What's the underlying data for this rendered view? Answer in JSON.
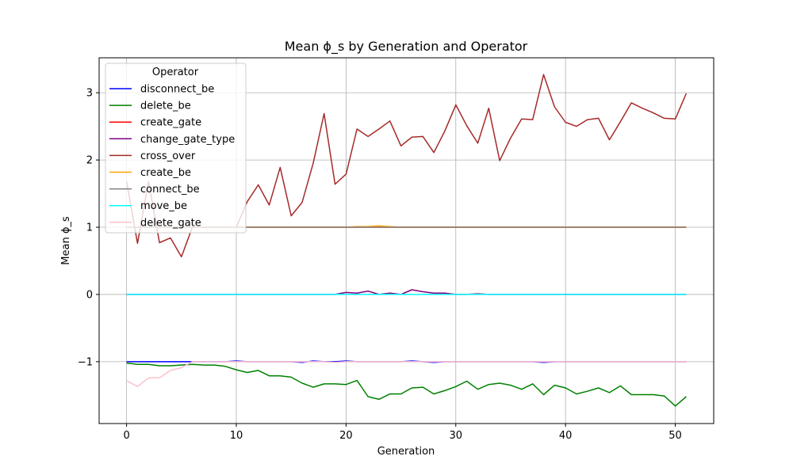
{
  "chart_data": {
    "type": "line",
    "title": "Mean ϕ_s by Generation and Operator",
    "xlabel": "Generation",
    "ylabel": "Mean ϕ_s",
    "xlim": [
      -2.5,
      53.5
    ],
    "ylim": [
      -1.92,
      3.52
    ],
    "xticks": [
      0,
      10,
      20,
      30,
      40,
      50
    ],
    "yticks": [
      -1,
      0,
      1,
      2,
      3
    ],
    "ytick_labels": [
      "−1",
      "0",
      "1",
      "2",
      "3"
    ],
    "grid": true,
    "legend": {
      "title": "Operator",
      "placement": "upper-left"
    },
    "x": [
      0,
      1,
      2,
      3,
      4,
      5,
      6,
      7,
      8,
      9,
      10,
      11,
      12,
      13,
      14,
      15,
      16,
      17,
      18,
      19,
      20,
      21,
      22,
      23,
      24,
      25,
      26,
      27,
      28,
      29,
      30,
      31,
      32,
      33,
      34,
      35,
      36,
      37,
      38,
      39,
      40,
      41,
      42,
      43,
      44,
      45,
      46,
      47,
      48,
      49,
      50,
      51
    ],
    "series": [
      {
        "name": "disconnect_be",
        "color": "#0000ff",
        "values": [
          -1.0,
          -1.0,
          -1.0,
          -1.0,
          -1.0,
          -1.0,
          -1.0,
          -1.0,
          -1.0,
          -1.0,
          -0.99,
          -1.0,
          -1.0,
          -1.0,
          -1.0,
          -1.0,
          -1.01,
          -0.99,
          -1.0,
          -1.0,
          -0.99,
          -1.0,
          -1.0,
          -1.0,
          -1.0,
          -1.0,
          -0.99,
          -1.0,
          -1.01,
          -1.0,
          -1.0,
          -1.0,
          -1.0,
          -1.0,
          -1.0,
          -1.0,
          -1.0,
          -1.0,
          -1.01,
          -1.0,
          -1.0,
          -1.0,
          -1.0,
          -1.0,
          -1.0,
          -1.0,
          -1.0,
          -1.0,
          -1.0,
          -1.0,
          -1.0,
          -1.0
        ]
      },
      {
        "name": "delete_be",
        "color": "#008000",
        "values": [
          -1.02,
          -1.04,
          -1.04,
          -1.06,
          -1.06,
          -1.05,
          -1.04,
          -1.05,
          -1.05,
          -1.07,
          -1.12,
          -1.16,
          -1.13,
          -1.21,
          -1.21,
          -1.23,
          -1.32,
          -1.38,
          -1.33,
          -1.33,
          -1.34,
          -1.28,
          -1.52,
          -1.56,
          -1.48,
          -1.48,
          -1.39,
          -1.38,
          -1.48,
          -1.43,
          -1.37,
          -1.29,
          -1.41,
          -1.34,
          -1.32,
          -1.35,
          -1.41,
          -1.33,
          -1.49,
          -1.35,
          -1.39,
          -1.48,
          -1.44,
          -1.39,
          -1.46,
          -1.36,
          -1.49,
          -1.49,
          -1.49,
          -1.51,
          -1.66,
          -1.52
        ]
      },
      {
        "name": "create_gate",
        "color": "#ff0000",
        "values": [
          1.0,
          1.0,
          1.0,
          1.0,
          1.0,
          1.0,
          1.0,
          1.0,
          1.0,
          1.0,
          1.0,
          1.0,
          1.0,
          1.0,
          1.0,
          1.0,
          1.0,
          1.0,
          1.0,
          1.0,
          1.0,
          1.0,
          1.0,
          1.0,
          1.0,
          1.0,
          1.0,
          1.0,
          1.0,
          1.0,
          1.0,
          1.0,
          1.0,
          1.0,
          1.0,
          1.0,
          1.0,
          1.0,
          1.0,
          1.0,
          1.0,
          1.0,
          1.0,
          1.0,
          1.0,
          1.0,
          1.0,
          1.0,
          1.0,
          1.0,
          1.0,
          1.0
        ]
      },
      {
        "name": "change_gate_type",
        "color": "#800080",
        "values": [
          0.0,
          0.0,
          0.0,
          0.0,
          0.0,
          0.0,
          0.0,
          0.0,
          0.0,
          0.0,
          0.0,
          0.0,
          0.0,
          0.0,
          0.0,
          0.0,
          0.0,
          0.0,
          0.0,
          0.0,
          0.03,
          0.02,
          0.05,
          0.0,
          0.02,
          0.0,
          0.07,
          0.04,
          0.02,
          0.02,
          0.0,
          0.0,
          0.01,
          0.0,
          0.0,
          0.0,
          0.0,
          0.0,
          0.0,
          0.0,
          0.0,
          0.0,
          0.0,
          0.0,
          0.0,
          0.0,
          0.0,
          0.0,
          0.0,
          0.0,
          0.0,
          0.0
        ]
      },
      {
        "name": "cross_over",
        "color": "#a52a2a",
        "values": [
          1.68,
          0.76,
          1.68,
          0.77,
          0.84,
          0.56,
          1.0,
          1.0,
          1.0,
          1.0,
          1.0,
          1.38,
          1.63,
          1.33,
          1.89,
          1.17,
          1.37,
          1.95,
          2.69,
          1.64,
          1.79,
          2.46,
          2.35,
          2.46,
          2.58,
          2.21,
          2.34,
          2.35,
          2.11,
          2.43,
          2.82,
          2.51,
          2.25,
          2.77,
          1.99,
          2.33,
          2.61,
          2.6,
          3.27,
          2.79,
          2.56,
          2.5,
          2.6,
          2.62,
          2.3,
          2.57,
          2.85,
          2.77,
          2.7,
          2.62,
          2.61,
          2.99
        ]
      },
      {
        "name": "create_be",
        "color": "#ffa500",
        "values": [
          1.0,
          1.0,
          1.0,
          1.0,
          1.0,
          1.0,
          1.0,
          1.0,
          1.0,
          1.0,
          1.0,
          1.0,
          1.0,
          1.0,
          1.0,
          1.0,
          1.0,
          1.0,
          1.0,
          1.0,
          1.0,
          1.01,
          1.01,
          1.02,
          1.01,
          1.0,
          1.0,
          1.0,
          1.0,
          1.0,
          1.0,
          1.0,
          1.0,
          1.0,
          1.0,
          1.0,
          1.0,
          1.0,
          1.0,
          1.0,
          1.0,
          1.0,
          1.0,
          1.0,
          1.0,
          1.0,
          1.0,
          1.0,
          1.0,
          1.0,
          1.0,
          1.0
        ]
      },
      {
        "name": "connect_be",
        "color": "#808080",
        "values": [
          1.0,
          1.0,
          1.0,
          1.0,
          1.0,
          1.0,
          1.0,
          1.0,
          1.0,
          1.0,
          1.0,
          1.0,
          1.0,
          1.0,
          1.0,
          1.0,
          1.0,
          1.0,
          1.0,
          1.0,
          1.0,
          1.0,
          1.0,
          1.0,
          1.0,
          1.0,
          1.0,
          1.0,
          1.0,
          1.0,
          1.0,
          1.0,
          1.0,
          1.0,
          1.0,
          1.0,
          1.0,
          1.0,
          1.0,
          1.0,
          1.0,
          1.0,
          1.0,
          1.0,
          1.0,
          1.0,
          1.0,
          1.0,
          1.0,
          1.0,
          1.0,
          1.0
        ]
      },
      {
        "name": "move_be",
        "color": "#00ffff",
        "values": [
          0.0,
          0.0,
          0.0,
          0.0,
          0.0,
          0.0,
          0.0,
          0.0,
          0.0,
          0.0,
          0.0,
          0.0,
          0.0,
          0.0,
          0.0,
          0.0,
          0.0,
          0.0,
          0.0,
          0.0,
          0.0,
          0.0,
          0.0,
          0.0,
          0.0,
          0.0,
          0.0,
          0.0,
          0.0,
          0.0,
          0.0,
          0.0,
          0.0,
          0.0,
          0.0,
          0.0,
          0.0,
          0.0,
          0.0,
          0.0,
          0.0,
          0.0,
          0.0,
          0.0,
          0.0,
          0.0,
          0.0,
          0.0,
          0.0,
          0.0,
          0.0,
          0.0
        ]
      },
      {
        "name": "delete_gate",
        "color": "#ffc0cb",
        "values": [
          -1.28,
          -1.37,
          -1.24,
          -1.24,
          -1.13,
          -1.09,
          -1.0,
          -1.0,
          -1.0,
          -1.0,
          -1.0,
          -1.0,
          -1.0,
          -1.0,
          -1.0,
          -1.0,
          -1.0,
          -1.0,
          -1.0,
          -1.01,
          -1.0,
          -1.0,
          -1.0,
          -1.0,
          -1.0,
          -1.0,
          -1.0,
          -1.0,
          -1.0,
          -1.0,
          -1.0,
          -1.0,
          -1.0,
          -1.0,
          -1.0,
          -1.0,
          -1.0,
          -1.0,
          -1.0,
          -1.0,
          -1.0,
          -1.0,
          -1.0,
          -1.0,
          -1.0,
          -1.0,
          -1.0,
          -1.0,
          -1.0,
          -1.0,
          -1.0,
          -1.0
        ]
      }
    ]
  }
}
